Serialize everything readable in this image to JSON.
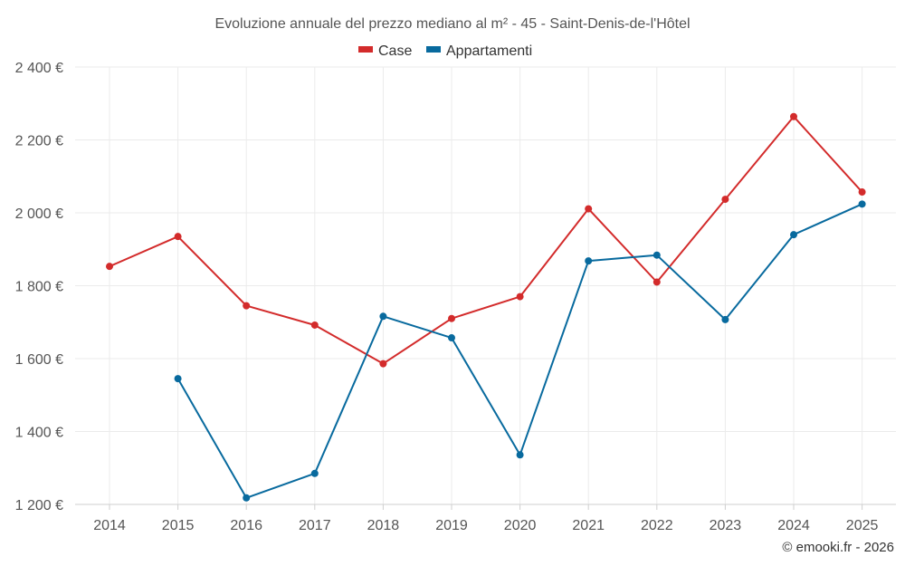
{
  "chart_data": {
    "type": "line",
    "title": "Evoluzione annuale del prezzo mediano al m² - 45 - Saint-Denis-de-l'Hôtel",
    "categories": [
      "2014",
      "2015",
      "2016",
      "2017",
      "2018",
      "2019",
      "2020",
      "2021",
      "2022",
      "2023",
      "2024",
      "2025"
    ],
    "ylim": [
      1200,
      2400
    ],
    "yticks": [
      1200,
      1400,
      1600,
      1800,
      2000,
      2200,
      2400
    ],
    "ytick_labels": [
      "1 200 €",
      "1 400 €",
      "1 600 €",
      "1 800 €",
      "2 000 €",
      "2 200 €",
      "2 400 €"
    ],
    "legend_position": "top-center",
    "grid": true,
    "series": [
      {
        "name": "Case",
        "color": "#d32b2b",
        "values": [
          1853,
          1935,
          1745,
          1692,
          1586,
          1710,
          1770,
          2011,
          1810,
          2037,
          2264,
          2057
        ]
      },
      {
        "name": "Appartamenti",
        "color": "#086a9e",
        "values": [
          null,
          1545,
          1218,
          1285,
          1716,
          1657,
          1336,
          1868,
          1884,
          1707,
          1940,
          2024
        ]
      }
    ],
    "credit": "© emooki.fr - 2026"
  }
}
